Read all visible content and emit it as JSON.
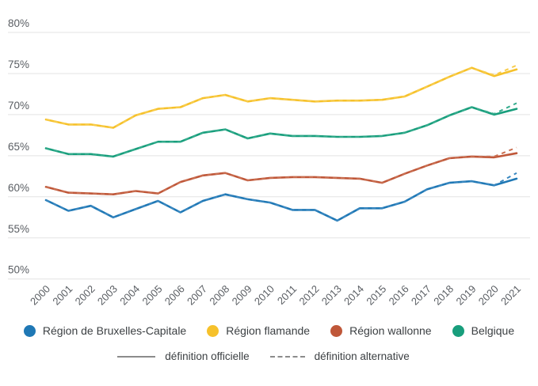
{
  "chart_data": {
    "type": "line",
    "title": "",
    "x": [
      2000,
      2001,
      2002,
      2003,
      2004,
      2005,
      2006,
      2007,
      2008,
      2009,
      2010,
      2011,
      2012,
      2013,
      2014,
      2015,
      2016,
      2017,
      2018,
      2019,
      2020,
      2021
    ],
    "y_axis": {
      "unit": "%",
      "min": 50,
      "max": 80,
      "tick_values": [
        80,
        75,
        70,
        65,
        60,
        55,
        50
      ],
      "ticks": [
        "80%",
        "75%",
        "70%",
        "65%",
        "60%",
        "55%",
        "50%"
      ]
    },
    "grid": true,
    "legend_position": "bottom",
    "line_styles": {
      "officielle": "solid",
      "alternative": "dashed"
    },
    "series": [
      {
        "key": "bruxelles-capitale",
        "name": "Région de Bruxelles-Capitale",
        "color": "#1F78B5",
        "alt_color": "#3987C0",
        "values": [
          59.6,
          58.3,
          58.9,
          57.5,
          58.5,
          59.5,
          58.1,
          59.5,
          60.3,
          59.7,
          59.3,
          58.4,
          58.4,
          57.1,
          58.6,
          58.6,
          59.4,
          60.9,
          61.7,
          61.9,
          61.4,
          62.2
        ],
        "alt_2020": 61.4,
        "alt_2021": 62.9
      },
      {
        "key": "flamande",
        "name": "Région flamande",
        "color": "#F6C12B",
        "alt_color": "#F8CC4A",
        "values": [
          69.4,
          68.8,
          68.8,
          68.4,
          69.9,
          70.7,
          70.9,
          72.0,
          72.4,
          71.6,
          72.0,
          71.8,
          71.6,
          71.7,
          71.7,
          71.8,
          72.2,
          73.4,
          74.6,
          75.7,
          74.7,
          75.5
        ],
        "alt_2020": 74.8,
        "alt_2021": 76.0
      },
      {
        "key": "wallonne",
        "name": "Région wallonne",
        "color": "#BF5739",
        "alt_color": "#C96E50",
        "values": [
          61.2,
          60.5,
          60.4,
          60.3,
          60.7,
          60.4,
          61.8,
          62.6,
          62.9,
          62.0,
          62.3,
          62.4,
          62.4,
          62.3,
          62.2,
          61.7,
          62.8,
          63.8,
          64.7,
          64.9,
          64.8,
          65.3
        ],
        "alt_2020": 64.9,
        "alt_2021": 66.0
      },
      {
        "key": "belgique",
        "name": "Belgique",
        "color": "#189E7C",
        "alt_color": "#33AB8C",
        "values": [
          65.9,
          65.2,
          65.2,
          64.9,
          65.8,
          66.7,
          66.7,
          67.8,
          68.2,
          67.1,
          67.7,
          67.4,
          67.4,
          67.3,
          67.3,
          67.4,
          67.8,
          68.7,
          69.9,
          70.9,
          70.0,
          70.7
        ],
        "alt_2020": 70.1,
        "alt_2021": 71.4
      }
    ]
  },
  "legend": {
    "official_label": "définition officielle",
    "alternative_label": "définition alternative"
  },
  "colors": {
    "background": "#ffffff",
    "gridline": "#e3e3e3",
    "axis_text": "#5a5e63",
    "legend_text": "#3c4043",
    "legend_sample": "#8b8b8b"
  }
}
